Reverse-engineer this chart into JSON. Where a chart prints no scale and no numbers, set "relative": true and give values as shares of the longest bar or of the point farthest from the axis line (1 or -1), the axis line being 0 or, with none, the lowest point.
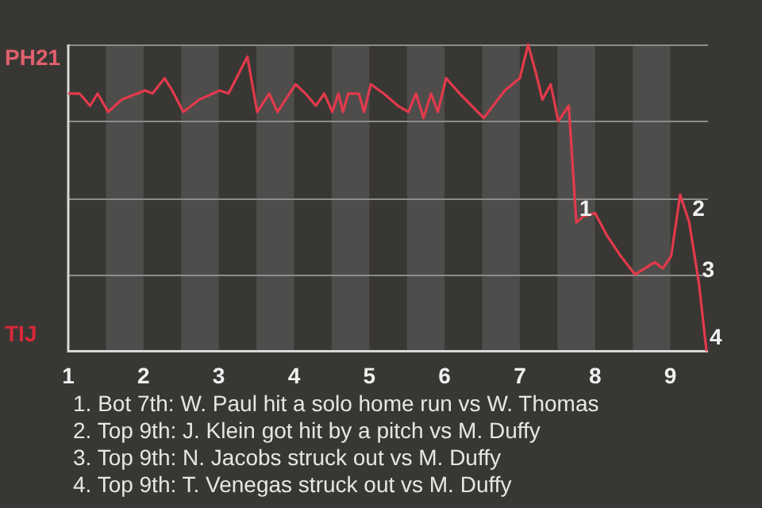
{
  "chart_data": {
    "type": "line",
    "relative": true,
    "x": [
      1,
      1.15,
      1.29,
      1.39,
      1.53,
      1.71,
      2.02,
      2.12,
      2.28,
      2.38,
      2.53,
      2.74,
      3.01,
      3.13,
      3.38,
      3.51,
      3.67,
      3.78,
      4.02,
      4.15,
      4.29,
      4.4,
      4.51,
      4.59,
      4.65,
      4.72,
      4.86,
      4.93,
      5.02,
      5.19,
      5.38,
      5.52,
      5.62,
      5.72,
      5.82,
      5.91,
      6.02,
      6.2,
      6.52,
      6.8,
      7,
      7.11,
      7.21,
      7.3,
      7.41,
      7.51,
      7.65,
      7.75,
      7.85,
      8,
      8.15,
      8.34,
      8.53,
      8.66,
      8.79,
      8.9,
      9.01,
      9.13,
      9.25,
      9.38,
      9.48
    ],
    "series": [
      {
        "color": "#e23a4c",
        "values": [
          0.84,
          0.84,
          0.8,
          0.84,
          0.78,
          0.82,
          0.85,
          0.84,
          0.89,
          0.85,
          0.78,
          0.82,
          0.85,
          0.84,
          0.96,
          0.78,
          0.84,
          0.78,
          0.87,
          0.84,
          0.8,
          0.84,
          0.78,
          0.84,
          0.78,
          0.84,
          0.84,
          0.78,
          0.87,
          0.84,
          0.8,
          0.78,
          0.84,
          0.76,
          0.84,
          0.78,
          0.89,
          0.84,
          0.76,
          0.85,
          0.89,
          1,
          0.91,
          0.82,
          0.87,
          0.75,
          0.8,
          0.42,
          0.44,
          0.45,
          0.38,
          0.31,
          0.25,
          0.27,
          0.29,
          0.27,
          0.31,
          0.51,
          0.42,
          0.22,
          0
        ]
      }
    ],
    "xlim": [
      1,
      9.5
    ],
    "xticks": [
      1,
      2,
      3,
      4,
      5,
      6,
      7,
      8,
      9
    ],
    "grid": "y",
    "legend": false,
    "marker": "none",
    "line_style": "solid",
    "bands": [
      {
        "axis": "x",
        "from": 1.5,
        "to": 2,
        "color": "#4e4d4b"
      },
      {
        "axis": "x",
        "from": 2.5,
        "to": 3,
        "color": "#4e4d4b"
      },
      {
        "axis": "x",
        "from": 3.5,
        "to": 4,
        "color": "#4e4d4b"
      },
      {
        "axis": "x",
        "from": 4.5,
        "to": 5,
        "color": "#4e4d4b"
      },
      {
        "axis": "x",
        "from": 5.5,
        "to": 6,
        "color": "#4e4d4b"
      },
      {
        "axis": "x",
        "from": 6.5,
        "to": 7,
        "color": "#4e4d4b"
      },
      {
        "axis": "x",
        "from": 7.5,
        "to": 8,
        "color": "#4e4d4b"
      },
      {
        "axis": "x",
        "from": 8.5,
        "to": 9,
        "color": "#4e4d4b"
      }
    ],
    "annotations": [
      "PH21",
      "TIJ",
      {
        "text": "1",
        "x": 7.75,
        "y": 0.42
      },
      {
        "text": "2",
        "x": 9.25,
        "y": 0.42
      },
      {
        "text": "3",
        "x": 9.38,
        "y": 0.22
      },
      {
        "text": "4",
        "x": 9.48,
        "y": 0
      },
      "1. Bot 7th: W. Paul hit a solo home run vs W. Thomas",
      "2. Top 9th: J. Klein got hit by a pitch vs M. Duffy",
      "3. Top 9th: N. Jacobs struck out vs M. Duffy",
      "4. Top 9th: T. Venegas struck out vs M. Duffy"
    ]
  }
}
